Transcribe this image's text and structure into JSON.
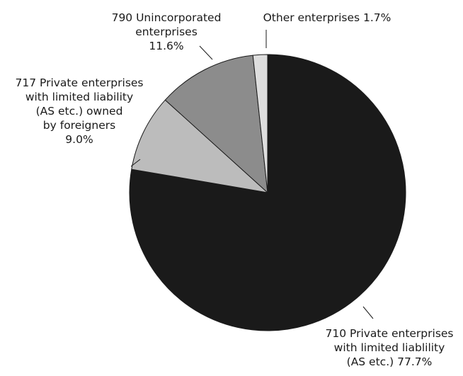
{
  "chart_data": {
    "type": "pie",
    "title": "",
    "start_angle_deg": 0,
    "direction": "clockwise",
    "slices": [
      {
        "label_lines": [
          "710 Private enterprises",
          "with limited liablility",
          "(AS etc.) 77.7%"
        ],
        "category": "710 Private enterprises with limited liablility (AS etc.)",
        "value": 77.7,
        "value_label": "77.7%",
        "color": "#1a1a1a"
      },
      {
        "label_lines": [
          "717 Private enterprises",
          "with limited liability",
          "(AS etc.) owned",
          "by foreigners",
          "9.0%"
        ],
        "category": "717 Private enterprises with limited liability (AS etc.) owned by foreigners",
        "value": 9.0,
        "value_label": "9.0%",
        "color": "#bcbcbc"
      },
      {
        "label_lines": [
          "790 Unincorporated",
          "enterprises",
          "11.6%"
        ],
        "category": "790 Unincorporated enterprises",
        "value": 11.6,
        "value_label": "11.6%",
        "color": "#8c8c8c"
      },
      {
        "label_lines": [
          "Other enterprises 1.7%"
        ],
        "category": "Other enterprises",
        "value": 1.7,
        "value_label": "1.7%",
        "color": "#dedede"
      }
    ]
  }
}
